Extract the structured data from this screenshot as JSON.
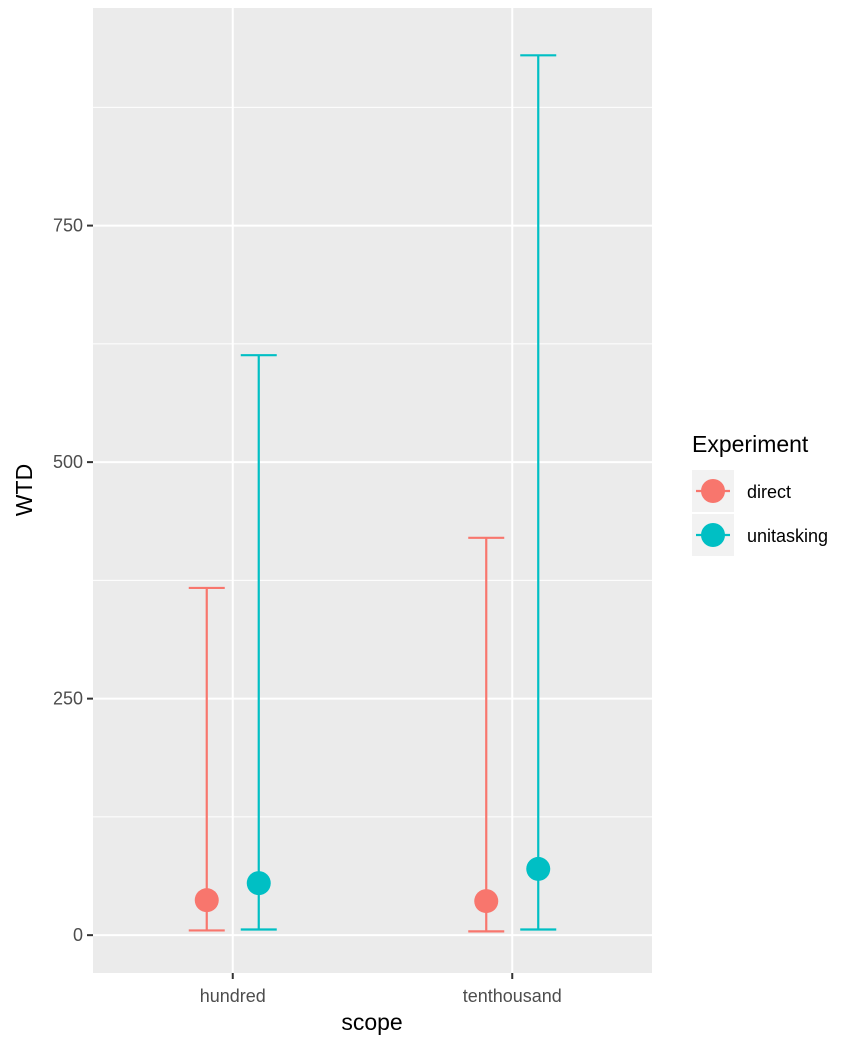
{
  "chart_data": {
    "type": "point-errorbar",
    "title": "",
    "xlabel": "scope",
    "ylabel": "WTD",
    "categories": [
      "hundred",
      "tenthousand"
    ],
    "ylim": [
      -40,
      980
    ],
    "yticks": [
      0,
      250,
      500,
      750
    ],
    "ytick_labels": [
      "0",
      "250",
      "500",
      "750"
    ],
    "grid": true,
    "legend": {
      "title": "Experiment",
      "position": "right"
    },
    "series": [
      {
        "name": "direct",
        "color": "#F8766D",
        "points": [
          {
            "category": "hundred",
            "y": 37,
            "ymin": 5,
            "ymax": 367
          },
          {
            "category": "tenthousand",
            "y": 36,
            "ymin": 4,
            "ymax": 420
          }
        ]
      },
      {
        "name": "unitasking",
        "color": "#00BFC4",
        "points": [
          {
            "category": "hundred",
            "y": 55,
            "ymin": 6,
            "ymax": 613
          },
          {
            "category": "tenthousand",
            "y": 70,
            "ymin": 6,
            "ymax": 930
          }
        ]
      }
    ]
  }
}
